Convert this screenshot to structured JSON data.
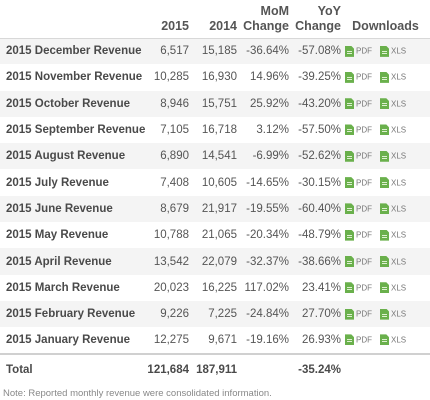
{
  "header": {
    "col_label": "",
    "col_2015": "2015",
    "col_2014": "2014",
    "col_mom_line1": "MoM",
    "col_mom_line2": "Change",
    "col_yoy_line1": "YoY",
    "col_yoy_line2": "Change",
    "col_downloads": "Downloads"
  },
  "rows": [
    {
      "label": "2015 December Revenue",
      "v2015": "6,517",
      "v2014": "15,185",
      "mom": "-36.64%",
      "yoy": "-57.08%"
    },
    {
      "label": "2015 November Revenue",
      "v2015": "10,285",
      "v2014": "16,930",
      "mom": "14.96%",
      "yoy": "-39.25%"
    },
    {
      "label": "2015 October Revenue",
      "v2015": "8,946",
      "v2014": "15,751",
      "mom": "25.92%",
      "yoy": "-43.20%"
    },
    {
      "label": "2015 September Revenue",
      "v2015": "7,105",
      "v2014": "16,718",
      "mom": "3.12%",
      "yoy": "-57.50%"
    },
    {
      "label": "2015 August Revenue",
      "v2015": "6,890",
      "v2014": "14,541",
      "mom": "-6.99%",
      "yoy": "-52.62%"
    },
    {
      "label": "2015 July Revenue",
      "v2015": "7,408",
      "v2014": "10,605",
      "mom": "-14.65%",
      "yoy": "-30.15%"
    },
    {
      "label": "2015 June Revenue",
      "v2015": "8,679",
      "v2014": "21,917",
      "mom": "-19.55%",
      "yoy": "-60.40%"
    },
    {
      "label": "2015 May Revenue",
      "v2015": "10,788",
      "v2014": "21,065",
      "mom": "-20.34%",
      "yoy": "-48.79%"
    },
    {
      "label": "2015 April Revenue",
      "v2015": "13,542",
      "v2014": "22,079",
      "mom": "-32.37%",
      "yoy": "-38.66%"
    },
    {
      "label": "2015 March Revenue",
      "v2015": "20,023",
      "v2014": "16,225",
      "mom": "117.02%",
      "yoy": "23.41%"
    },
    {
      "label": "2015 February Revenue",
      "v2015": "9,226",
      "v2014": "7,225",
      "mom": "-24.84%",
      "yoy": "27.70%"
    },
    {
      "label": "2015 January Revenue",
      "v2015": "12,275",
      "v2014": "9,671",
      "mom": "-19.16%",
      "yoy": "26.93%"
    }
  ],
  "downloads": {
    "pdf_label": "PDF",
    "xls_label": "XLS",
    "icon": "file-icon",
    "icon_color": "#6ab04c"
  },
  "total": {
    "label": "Total",
    "v2015": "121,684",
    "v2014": "187,911",
    "mom": "",
    "yoy": "-35.24%"
  },
  "note": "Note: Reported monthly revenue were consolidated information."
}
